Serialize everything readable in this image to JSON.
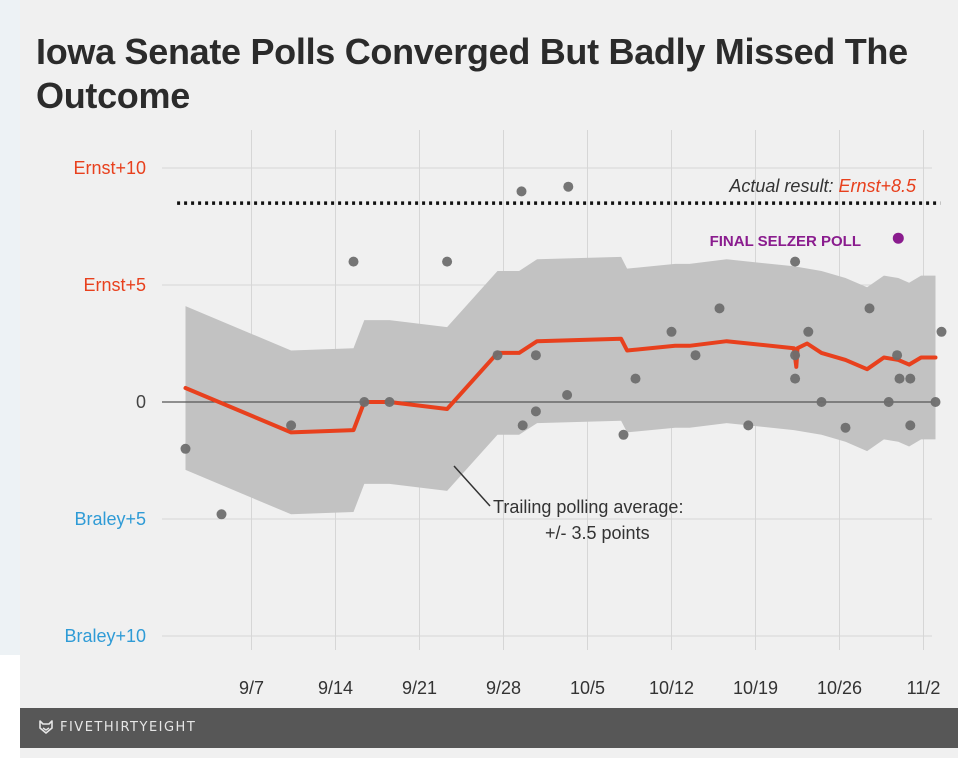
{
  "chart_data": {
    "type": "scatter",
    "title": "Iowa Senate Polls Converged But Badly Missed The Outcome",
    "y_ticks": [
      {
        "value": 10,
        "label": "Ernst+10",
        "color": "#e8401d"
      },
      {
        "value": 5,
        "label": "Ernst+5",
        "color": "#e8401d"
      },
      {
        "value": 0,
        "label": "0",
        "color": "#444444"
      },
      {
        "value": -5,
        "label": "Braley+5",
        "color": "#2f9bd6"
      },
      {
        "value": -10,
        "label": "Braley+10",
        "color": "#2f9bd6"
      }
    ],
    "ylim": [
      -10,
      10
    ],
    "x_ticks": [
      {
        "day": 7,
        "label": "9/7"
      },
      {
        "day": 14,
        "label": "9/14"
      },
      {
        "day": 21,
        "label": "9/21"
      },
      {
        "day": 28,
        "label": "9/28"
      },
      {
        "day": 35,
        "label": "10/5"
      },
      {
        "day": 42,
        "label": "10/12"
      },
      {
        "day": 49,
        "label": "10/19"
      },
      {
        "day": 56,
        "label": "10/26"
      },
      {
        "day": 63,
        "label": "11/2"
      }
    ],
    "x_axis_labels_mean": "day of September 2014",
    "xlim": [
      0.5,
      64.5
    ],
    "grid": true,
    "actual_result": {
      "value": 8.5,
      "label_prefix": "Actual result: ",
      "label_value": "Ernst+8.5",
      "label_color": "#e8401d"
    },
    "band_annotation": {
      "line1": "Trailing polling average:",
      "line2": "+/- 3.5 points"
    },
    "highlight": {
      "label": "FINAL SELZER POLL",
      "x": 60.9,
      "y": 7,
      "color": "#8a1c8e"
    },
    "colors": {
      "average_line": "#e8401d",
      "band": "#c2c2c2",
      "polls": "#6e6e6e",
      "reference_line": "#111111"
    },
    "average_line": [
      [
        1.5,
        0.6
      ],
      [
        10.3,
        -1.3
      ],
      [
        15.5,
        -1.2
      ],
      [
        16.4,
        0
      ],
      [
        18.5,
        0
      ],
      [
        23.3,
        -0.3
      ],
      [
        27.5,
        2.1
      ],
      [
        29.3,
        2.1
      ],
      [
        30.8,
        2.6
      ],
      [
        37.8,
        2.7
      ],
      [
        38.3,
        2.2
      ],
      [
        42.3,
        2.4
      ],
      [
        43.5,
        2.4
      ],
      [
        46.6,
        2.6
      ],
      [
        52.2,
        2.3
      ],
      [
        52.4,
        1.5
      ],
      [
        52.5,
        2.3
      ],
      [
        53.3,
        2.5
      ],
      [
        54.5,
        2.1
      ],
      [
        56.5,
        1.8
      ],
      [
        58.3,
        1.4
      ],
      [
        59.7,
        1.9
      ],
      [
        60.9,
        1.8
      ],
      [
        61.8,
        1.6
      ],
      [
        62.8,
        1.9
      ],
      [
        64.0,
        1.9
      ]
    ],
    "band_upper": [
      [
        1.5,
        4.1
      ],
      [
        10.3,
        2.2
      ],
      [
        15.5,
        2.3
      ],
      [
        16.4,
        3.5
      ],
      [
        18.5,
        3.5
      ],
      [
        23.3,
        3.2
      ],
      [
        27.5,
        5.6
      ],
      [
        29.3,
        5.6
      ],
      [
        30.8,
        6.1
      ],
      [
        37.8,
        6.2
      ],
      [
        38.3,
        5.7
      ],
      [
        42.3,
        5.9
      ],
      [
        43.5,
        5.9
      ],
      [
        46.6,
        6.1
      ],
      [
        52.2,
        5.8
      ],
      [
        54.5,
        5.6
      ],
      [
        56.5,
        5.3
      ],
      [
        58.3,
        4.9
      ],
      [
        59.7,
        5.4
      ],
      [
        60.9,
        5.3
      ],
      [
        61.8,
        5.1
      ],
      [
        62.8,
        5.4
      ],
      [
        64.0,
        5.4
      ]
    ],
    "band_lower": [
      [
        1.5,
        -2.9
      ],
      [
        10.3,
        -4.8
      ],
      [
        15.5,
        -4.7
      ],
      [
        16.4,
        -3.5
      ],
      [
        18.5,
        -3.5
      ],
      [
        23.3,
        -3.8
      ],
      [
        27.5,
        -1.4
      ],
      [
        29.3,
        -1.4
      ],
      [
        30.8,
        -0.9
      ],
      [
        37.8,
        -0.8
      ],
      [
        38.3,
        -1.3
      ],
      [
        42.3,
        -1.1
      ],
      [
        43.5,
        -1.1
      ],
      [
        46.6,
        -0.9
      ],
      [
        52.2,
        -1.2
      ],
      [
        54.5,
        -1.4
      ],
      [
        56.5,
        -1.7
      ],
      [
        58.3,
        -2.1
      ],
      [
        59.7,
        -1.6
      ],
      [
        60.9,
        -1.7
      ],
      [
        61.8,
        -1.9
      ],
      [
        62.8,
        -1.6
      ],
      [
        64.0,
        -1.6
      ]
    ],
    "polls": [
      [
        1.5,
        -2
      ],
      [
        4.5,
        -4.8
      ],
      [
        10.3,
        -1
      ],
      [
        15.5,
        6
      ],
      [
        16.4,
        0
      ],
      [
        18.5,
        0
      ],
      [
        23.3,
        6
      ],
      [
        27.5,
        2
      ],
      [
        29.5,
        9
      ],
      [
        29.6,
        -1
      ],
      [
        30.7,
        2
      ],
      [
        30.7,
        -0.4
      ],
      [
        33.4,
        9.2
      ],
      [
        33.3,
        0.3
      ],
      [
        38.0,
        -1.4
      ],
      [
        39.0,
        1
      ],
      [
        42.0,
        3
      ],
      [
        44.0,
        2
      ],
      [
        46.0,
        4
      ],
      [
        48.4,
        -1
      ],
      [
        52.3,
        6
      ],
      [
        52.3,
        2
      ],
      [
        52.3,
        1
      ],
      [
        53.4,
        3
      ],
      [
        54.5,
        0
      ],
      [
        56.5,
        -1.1
      ],
      [
        58.5,
        4
      ],
      [
        60.1,
        0
      ],
      [
        60.8,
        2
      ],
      [
        61.0,
        1
      ],
      [
        61.9,
        1
      ],
      [
        61.9,
        -1
      ],
      [
        64.0,
        0
      ],
      [
        64.5,
        3
      ]
    ]
  },
  "footer": {
    "brand": "FIVETHIRTYEIGHT",
    "logo_icon": "fox-icon"
  }
}
